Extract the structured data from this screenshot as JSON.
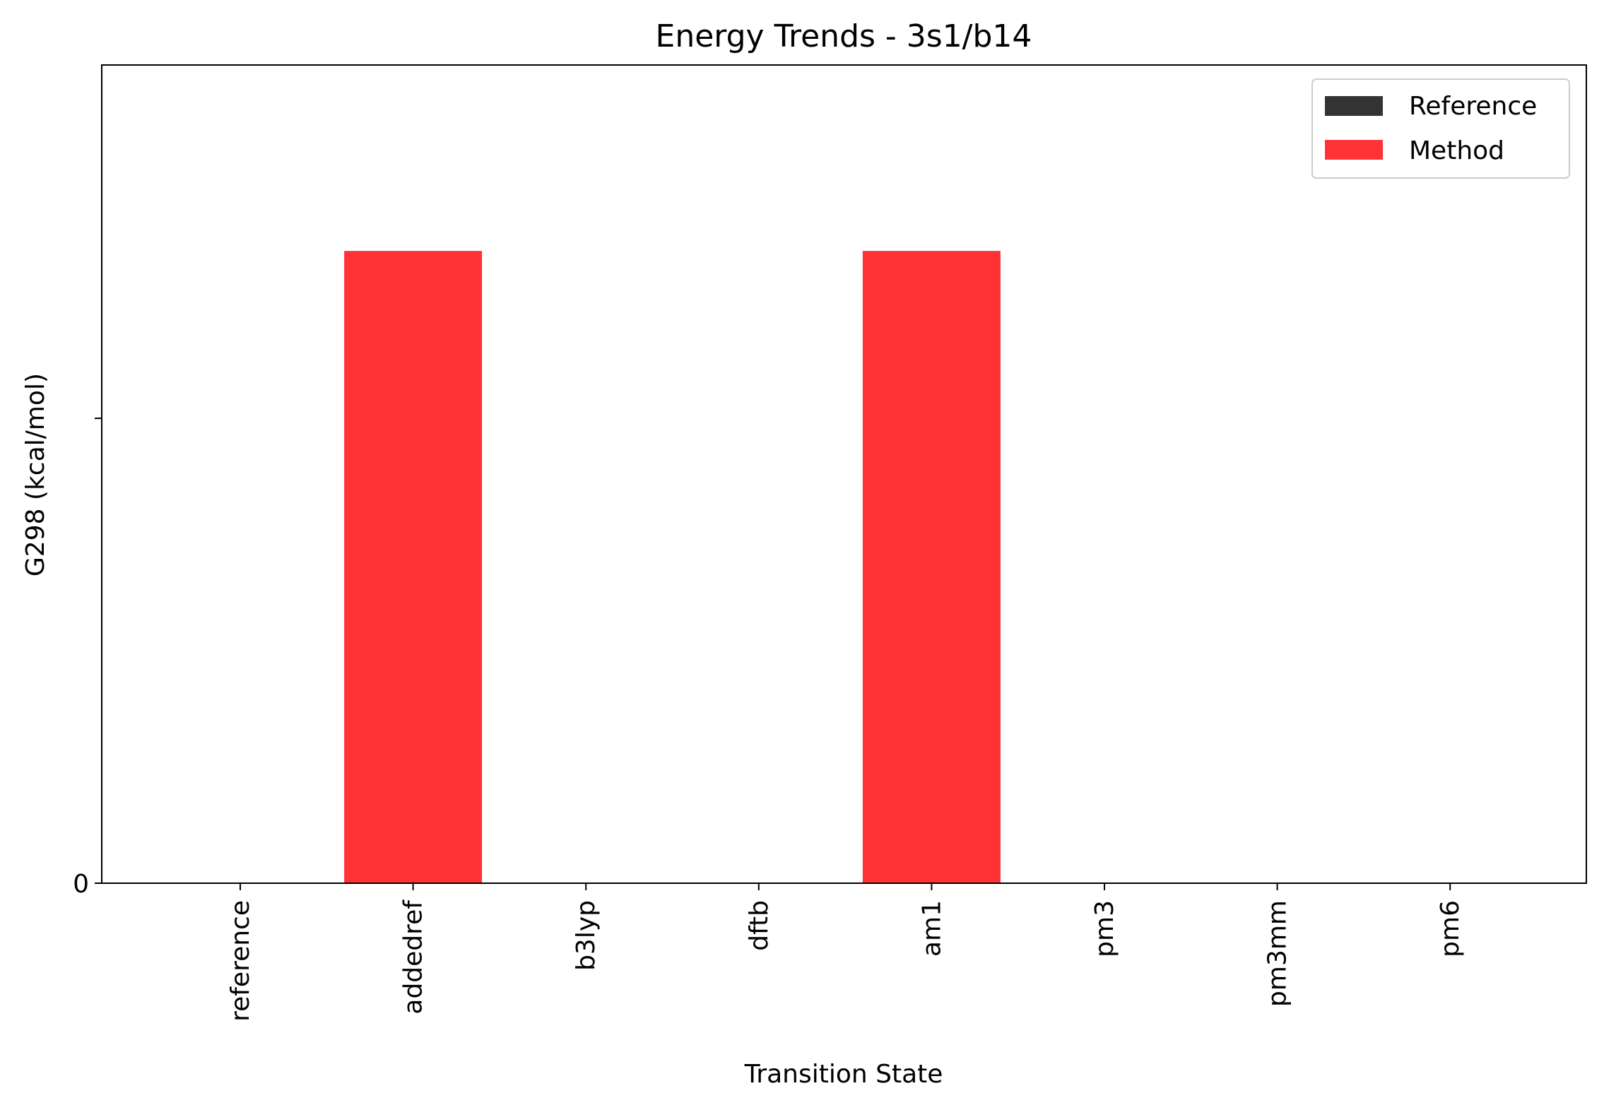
{
  "chart_data": {
    "type": "bar",
    "title": "Energy Trends - 3s1/b14",
    "xlabel": "Transition State",
    "ylabel": "G298 (kcal/mol)",
    "categories": [
      "reference",
      "addedref",
      "b3lyp",
      "dftb",
      "am1",
      "pm3",
      "pm3mm",
      "pm6"
    ],
    "yticks": [
      "0",
      ""
    ],
    "ylim": [
      0,
      1.76
    ],
    "ytick_values": [
      0,
      1
    ],
    "series": [
      {
        "name": "Reference",
        "color": "#333333",
        "values": [
          0,
          0,
          0,
          0,
          0,
          0,
          0,
          0
        ]
      },
      {
        "name": "Method",
        "color": "#ff3236",
        "values": [
          0,
          1.36,
          0,
          0,
          1.36,
          0,
          0,
          0
        ]
      }
    ],
    "legend_position": "top-right",
    "grid": false
  }
}
